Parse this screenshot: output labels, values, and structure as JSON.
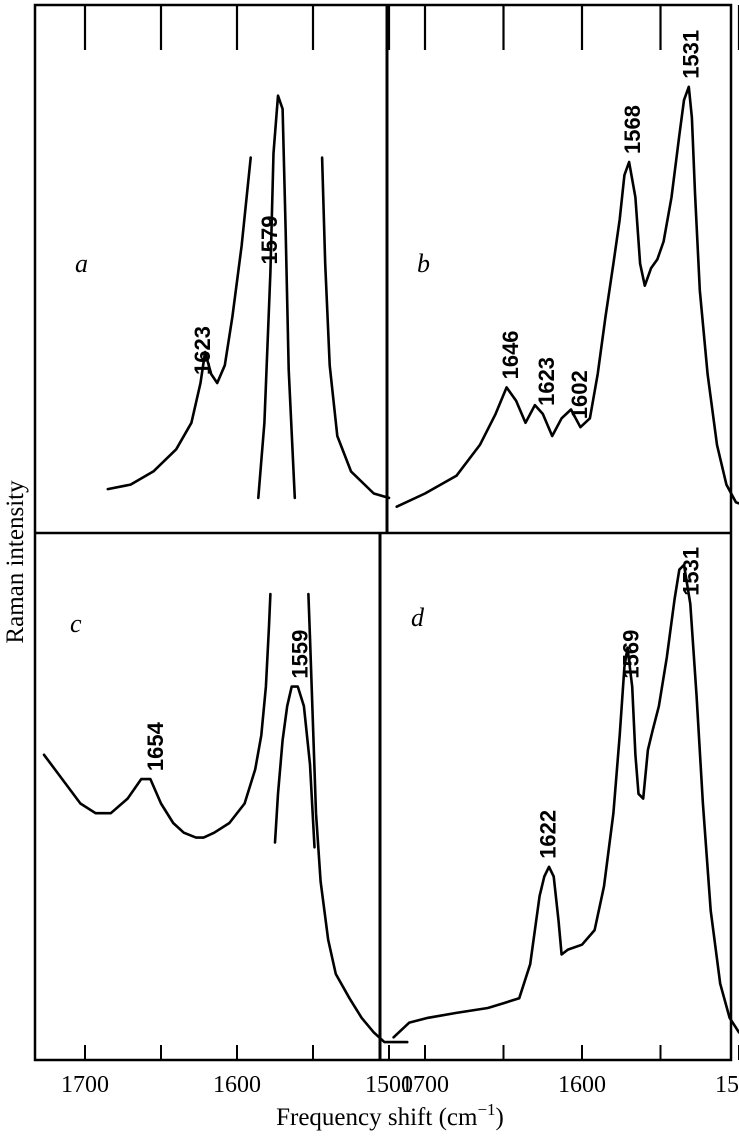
{
  "chart_data": {
    "type": "line",
    "xlabel_main": "Frequency shift (cm",
    "xlabel_exp": "−1",
    "xlabel_close": ")",
    "ylabel": "Raman intensity",
    "x_ticks": [
      "1700",
      "1600",
      "1500"
    ],
    "x_range": [
      1735,
      1450
    ],
    "panels": [
      {
        "label": "a",
        "peaks": [
          {
            "x": 1623,
            "label": "1623"
          },
          {
            "x": 1579,
            "label": "1579"
          }
        ],
        "segments": [
          [
            [
              1685,
              0.07
            ],
            [
              1670,
              0.08
            ],
            [
              1655,
              0.11
            ],
            [
              1640,
              0.16
            ],
            [
              1630,
              0.22
            ],
            [
              1624,
              0.31
            ],
            [
              1621,
              0.38
            ],
            [
              1617,
              0.33
            ],
            [
              1613,
              0.31
            ],
            [
              1608,
              0.35
            ],
            [
              1603,
              0.46
            ],
            [
              1597,
              0.62
            ],
            [
              1591,
              0.82
            ]
          ],
          [
            [
              1586,
              0.05
            ],
            [
              1582,
              0.22
            ],
            [
              1578,
              0.56
            ],
            [
              1576,
              0.83
            ],
            [
              1573,
              0.96
            ],
            [
              1570,
              0.93
            ],
            [
              1568,
              0.66
            ],
            [
              1566,
              0.34
            ],
            [
              1562,
              0.05
            ]
          ],
          [
            [
              1544,
              0.82
            ],
            [
              1542,
              0.58
            ],
            [
              1539,
              0.35
            ],
            [
              1534,
              0.19
            ],
            [
              1525,
              0.11
            ],
            [
              1510,
              0.06
            ],
            [
              1500,
              0.05
            ]
          ]
        ]
      },
      {
        "label": "b",
        "peaks": [
          {
            "x": 1646,
            "label": "1646"
          },
          {
            "x": 1623,
            "label": "1623"
          },
          {
            "x": 1602,
            "label": "1602"
          },
          {
            "x": 1568,
            "label": "1568"
          },
          {
            "x": 1531,
            "label": "1531"
          }
        ],
        "segments": [
          [
            [
              1718,
              0.03
            ],
            [
              1700,
              0.06
            ],
            [
              1680,
              0.1
            ],
            [
              1665,
              0.17
            ],
            [
              1655,
              0.24
            ],
            [
              1648,
              0.3
            ],
            [
              1642,
              0.27
            ],
            [
              1636,
              0.22
            ],
            [
              1630,
              0.26
            ],
            [
              1625,
              0.24
            ],
            [
              1619,
              0.19
            ],
            [
              1613,
              0.23
            ],
            [
              1607,
              0.25
            ],
            [
              1601,
              0.21
            ],
            [
              1595,
              0.23
            ],
            [
              1590,
              0.33
            ],
            [
              1585,
              0.46
            ],
            [
              1580,
              0.58
            ],
            [
              1576,
              0.68
            ],
            [
              1573,
              0.78
            ],
            [
              1570,
              0.81
            ],
            [
              1566,
              0.73
            ],
            [
              1563,
              0.58
            ],
            [
              1560,
              0.53
            ],
            [
              1556,
              0.57
            ],
            [
              1552,
              0.59
            ],
            [
              1548,
              0.63
            ],
            [
              1543,
              0.73
            ],
            [
              1538,
              0.87
            ],
            [
              1535,
              0.95
            ],
            [
              1532,
              0.98
            ],
            [
              1530,
              0.91
            ],
            [
              1528,
              0.74
            ],
            [
              1525,
              0.52
            ],
            [
              1520,
              0.33
            ],
            [
              1514,
              0.17
            ],
            [
              1508,
              0.08
            ],
            [
              1502,
              0.04
            ],
            [
              1494,
              0.03
            ],
            [
              1488,
              0.05
            ]
          ]
        ]
      },
      {
        "label": "c",
        "peaks": [
          {
            "x": 1654,
            "label": "1654"
          },
          {
            "x": 1559,
            "label": "1559"
          }
        ],
        "segments": [
          [
            [
              1727,
              0.6
            ],
            [
              1715,
              0.55
            ],
            [
              1703,
              0.5
            ],
            [
              1693,
              0.48
            ],
            [
              1683,
              0.48
            ],
            [
              1672,
              0.51
            ],
            [
              1663,
              0.55
            ],
            [
              1657,
              0.55
            ],
            [
              1650,
              0.5
            ],
            [
              1642,
              0.46
            ],
            [
              1635,
              0.44
            ],
            [
              1627,
              0.43
            ],
            [
              1622,
              0.43
            ],
            [
              1615,
              0.44
            ],
            [
              1605,
              0.46
            ],
            [
              1595,
              0.5
            ],
            [
              1588,
              0.57
            ],
            [
              1584,
              0.64
            ],
            [
              1581,
              0.74
            ],
            [
              1579,
              0.86
            ],
            [
              1578,
              0.93
            ]
          ],
          [
            [
              1575,
              0.42
            ],
            [
              1573,
              0.52
            ],
            [
              1570,
              0.63
            ],
            [
              1567,
              0.7
            ],
            [
              1564,
              0.74
            ],
            [
              1560,
              0.74
            ],
            [
              1556,
              0.7
            ],
            [
              1552,
              0.58
            ],
            [
              1549,
              0.41
            ]
          ],
          [
            [
              1553,
              0.93
            ],
            [
              1552,
              0.84
            ],
            [
              1550,
              0.66
            ],
            [
              1548,
              0.48
            ],
            [
              1545,
              0.34
            ],
            [
              1540,
              0.22
            ],
            [
              1535,
              0.15
            ],
            [
              1526,
              0.1
            ],
            [
              1518,
              0.06
            ],
            [
              1510,
              0.03
            ],
            [
              1503,
              0.01
            ],
            [
              1498,
              0.01
            ],
            [
              1488,
              0.01
            ]
          ]
        ]
      },
      {
        "label": "d",
        "peaks": [
          {
            "x": 1622,
            "label": "1622"
          },
          {
            "x": 1569,
            "label": "1569"
          },
          {
            "x": 1531,
            "label": "1531"
          }
        ],
        "segments": [
          [
            [
              1720,
              0.02
            ],
            [
              1710,
              0.05
            ],
            [
              1698,
              0.06
            ],
            [
              1680,
              0.07
            ],
            [
              1660,
              0.08
            ],
            [
              1650,
              0.09
            ],
            [
              1640,
              0.1
            ],
            [
              1633,
              0.17
            ],
            [
              1630,
              0.24
            ],
            [
              1627,
              0.31
            ],
            [
              1624,
              0.35
            ],
            [
              1621,
              0.37
            ],
            [
              1618,
              0.35
            ],
            [
              1615,
              0.26
            ],
            [
              1613,
              0.19
            ],
            [
              1609,
              0.2
            ],
            [
              1600,
              0.21
            ],
            [
              1592,
              0.24
            ],
            [
              1586,
              0.33
            ],
            [
              1580,
              0.48
            ],
            [
              1576,
              0.64
            ],
            [
              1573,
              0.78
            ],
            [
              1571,
              0.82
            ],
            [
              1568,
              0.74
            ],
            [
              1566,
              0.6
            ],
            [
              1564,
              0.52
            ],
            [
              1561,
              0.51
            ],
            [
              1558,
              0.61
            ],
            [
              1555,
              0.65
            ],
            [
              1551,
              0.7
            ],
            [
              1546,
              0.8
            ],
            [
              1541,
              0.92
            ],
            [
              1538,
              0.98
            ],
            [
              1535,
              0.99
            ],
            [
              1531,
              0.91
            ],
            [
              1527,
              0.72
            ],
            [
              1523,
              0.5
            ],
            [
              1518,
              0.28
            ],
            [
              1512,
              0.13
            ],
            [
              1506,
              0.06
            ],
            [
              1500,
              0.03
            ],
            [
              1494,
              0.04
            ],
            [
              1488,
              0.06
            ],
            [
              1484,
              0.07
            ]
          ]
        ]
      }
    ]
  }
}
